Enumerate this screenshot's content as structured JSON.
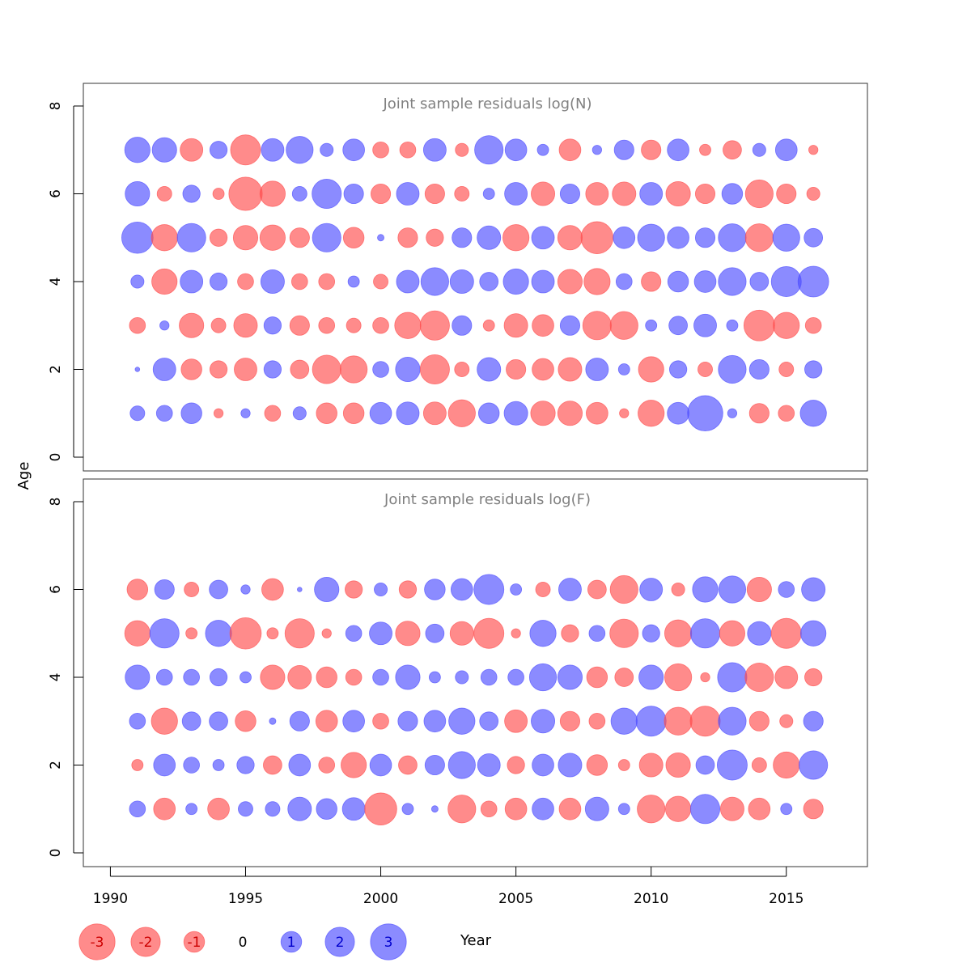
{
  "figure": {
    "ylabel": "Age",
    "xlabel": "Year",
    "colors": {
      "negative": "#ff4d4d",
      "positive": "#4d4dff",
      "frame": "#333333"
    }
  },
  "chart_data": [
    {
      "type": "bubble",
      "title": "Joint sample residuals log(N)",
      "xlim": [
        1989,
        2018
      ],
      "ylim": [
        0,
        8
      ],
      "x_ticks": [
        1990,
        1995,
        2000,
        2005,
        2010,
        2015
      ],
      "y_ticks": [
        0,
        2,
        4,
        6,
        8
      ],
      "x": [
        1991,
        1992,
        1993,
        1994,
        1995,
        1996,
        1997,
        1998,
        1999,
        2000,
        2001,
        2002,
        2003,
        2004,
        2005,
        2006,
        2007,
        2008,
        2009,
        2010,
        2011,
        2012,
        2013,
        2014,
        2015,
        2016
      ],
      "ages": [
        1,
        2,
        3,
        4,
        5,
        6,
        7
      ],
      "residuals": [
        [
          0.5,
          0.6,
          1.0,
          -0.2,
          0.2,
          -0.6,
          0.4,
          -1.0,
          -1.0,
          1.1,
          1.2,
          -1.2,
          -1.7,
          1.0,
          1.3,
          -1.4,
          -1.4,
          -1.1,
          -0.2,
          -1.6,
          1.1,
          2.9,
          0.2,
          -0.9,
          -0.6,
          1.6
        ],
        [
          0.05,
          1.2,
          -1.0,
          -0.7,
          -1.2,
          0.7,
          -0.8,
          -1.9,
          -1.7,
          0.6,
          1.4,
          -2.0,
          -0.5,
          1.3,
          -0.9,
          -1.1,
          -1.3,
          1.2,
          0.3,
          -1.5,
          0.7,
          -0.5,
          1.8,
          0.9,
          -0.5,
          0.7
        ],
        [
          -0.6,
          0.2,
          -1.4,
          -0.5,
          -1.3,
          0.7,
          -0.9,
          -0.6,
          -0.5,
          -0.6,
          -1.6,
          -2.0,
          0.9,
          -0.3,
          -1.3,
          -1.1,
          0.9,
          -1.9,
          -1.8,
          0.3,
          0.8,
          1.2,
          0.3,
          -2.2,
          -1.6,
          -0.6
        ],
        [
          0.4,
          -1.5,
          1.2,
          0.7,
          -0.6,
          1.3,
          -0.6,
          -0.6,
          0.3,
          -0.5,
          1.2,
          1.8,
          1.3,
          0.8,
          1.5,
          1.2,
          -1.4,
          -1.6,
          0.6,
          -0.9,
          1.0,
          1.1,
          1.8,
          0.8,
          2.1,
          2.2
        ],
        [
          2.3,
          -1.6,
          1.9,
          -0.7,
          -1.4,
          -1.5,
          -0.9,
          1.9,
          -1.0,
          0.1,
          -0.9,
          -0.7,
          0.9,
          1.3,
          -1.6,
          1.2,
          -1.4,
          -2.4,
          1.1,
          1.7,
          1.1,
          0.9,
          1.8,
          -1.8,
          1.7,
          0.8
        ],
        [
          1.4,
          -0.5,
          0.7,
          -0.3,
          -2.6,
          -1.5,
          0.5,
          2.0,
          0.9,
          -0.9,
          1.2,
          -0.9,
          -0.5,
          0.3,
          1.2,
          -1.3,
          0.9,
          -1.2,
          -1.3,
          1.2,
          -1.4,
          -0.9,
          1.0,
          -1.8,
          -0.9,
          -0.4
        ],
        [
          1.5,
          1.4,
          -1.2,
          0.7,
          -2.1,
          1.2,
          1.7,
          0.4,
          1.1,
          -0.6,
          -0.6,
          1.2,
          -0.4,
          1.9,
          1.1,
          0.3,
          -1.1,
          0.2,
          0.9,
          -0.9,
          1.1,
          -0.3,
          -0.8,
          0.4,
          1.1,
          -0.2
        ]
      ]
    },
    {
      "type": "bubble",
      "title": "Joint sample residuals log(F)",
      "xlim": [
        1989,
        2018
      ],
      "ylim": [
        0,
        8
      ],
      "x_ticks": [
        1990,
        1995,
        2000,
        2005,
        2010,
        2015
      ],
      "y_ticks": [
        0,
        2,
        4,
        6,
        8
      ],
      "x": [
        1991,
        1992,
        1993,
        1994,
        1995,
        1996,
        1997,
        1998,
        1999,
        2000,
        2001,
        2002,
        2003,
        2004,
        2005,
        2006,
        2007,
        2008,
        2009,
        2010,
        2011,
        2012,
        2013,
        2014,
        2015,
        2016
      ],
      "ages": [
        1,
        2,
        3,
        4,
        5,
        6
      ],
      "residuals": [
        [
          0.6,
          -1.1,
          0.3,
          -1.1,
          0.5,
          0.5,
          1.3,
          1.0,
          1.2,
          -2.4,
          0.3,
          0.1,
          -1.8,
          -0.6,
          -1.1,
          1.1,
          -1.1,
          1.3,
          0.3,
          -1.8,
          -1.5,
          2.0,
          -1.3,
          -1.1,
          0.3,
          -0.9
        ],
        [
          -0.3,
          1.1,
          0.6,
          0.3,
          0.7,
          -0.8,
          1.1,
          -0.6,
          -1.5,
          1.1,
          -0.8,
          0.9,
          1.7,
          1.2,
          -0.7,
          1.1,
          1.3,
          -1.0,
          -0.3,
          -1.3,
          -1.4,
          0.8,
          2.1,
          -0.5,
          -1.6,
          1.9
        ],
        [
          0.6,
          -1.6,
          0.8,
          0.8,
          -1.0,
          0.1,
          0.9,
          -1.1,
          1.1,
          -0.6,
          0.9,
          1.1,
          1.6,
          0.8,
          -1.2,
          1.3,
          -0.9,
          -0.6,
          1.6,
          2.1,
          -1.8,
          -2.1,
          1.8,
          -0.9,
          -0.4,
          0.9
        ],
        [
          1.4,
          0.6,
          0.6,
          0.7,
          0.3,
          -1.4,
          -1.3,
          -1.0,
          -0.6,
          0.6,
          1.4,
          0.3,
          0.4,
          0.6,
          0.6,
          1.7,
          1.4,
          -1.0,
          -0.8,
          1.4,
          -1.7,
          -0.2,
          2.0,
          -1.9,
          -1.2,
          -0.7
        ],
        [
          -1.5,
          2.0,
          -0.3,
          1.6,
          -2.3,
          -0.3,
          -2.0,
          -0.2,
          0.6,
          1.2,
          -1.4,
          0.8,
          -1.3,
          -2.1,
          -0.2,
          1.6,
          -0.7,
          0.6,
          -1.9,
          0.7,
          -1.7,
          2.0,
          -1.5,
          1.3,
          -2.1,
          1.5
        ],
        [
          -1.0,
          0.9,
          -0.5,
          0.8,
          0.2,
          -1.1,
          0.05,
          1.4,
          -0.7,
          0.4,
          -0.7,
          1.0,
          1.1,
          2.1,
          0.3,
          -0.5,
          1.2,
          -0.8,
          -1.8,
          1.2,
          -0.4,
          1.5,
          1.7,
          -1.4,
          0.6,
          1.3
        ]
      ]
    }
  ],
  "legend": {
    "items": [
      {
        "label": "-3",
        "value": -3
      },
      {
        "label": "-2",
        "value": -2
      },
      {
        "label": "-1",
        "value": -1
      },
      {
        "label": "0",
        "value": 0
      },
      {
        "label": "1",
        "value": 1
      },
      {
        "label": "2",
        "value": 2
      },
      {
        "label": "3",
        "value": 3
      }
    ],
    "label_colors": {
      "negative": "#cc0000",
      "positive": "#0000cc",
      "zero": "#000000"
    }
  }
}
